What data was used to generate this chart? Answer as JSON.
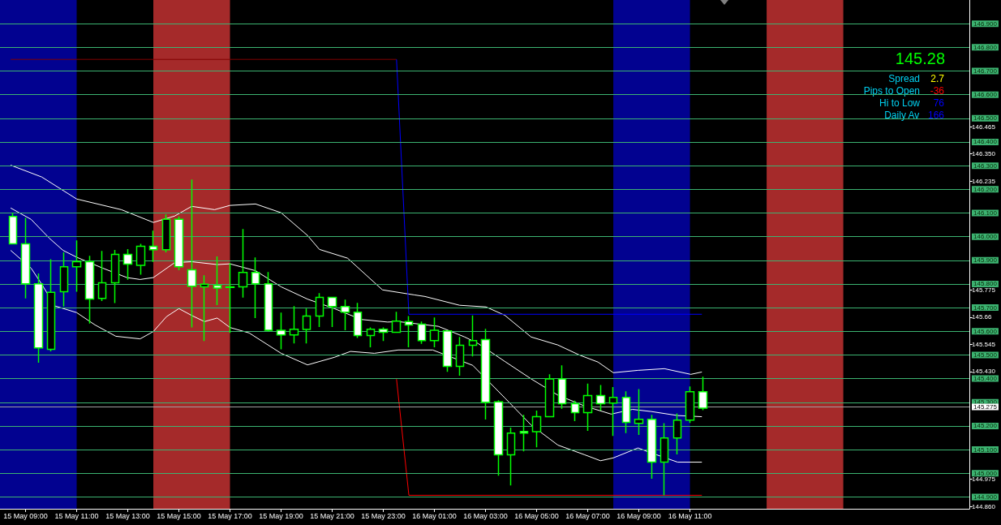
{
  "chart_data": {
    "type": "candlestick",
    "xlim": [
      "--05-15T08:00",
      "--05-16T21:56"
    ],
    "xticks": [
      {
        "value": "--05-15T09:00",
        "label": "15 May 09:00"
      },
      {
        "value": "--05-15T11:00",
        "label": "15 May 11:00"
      },
      {
        "value": "--05-15T13:00",
        "label": "15 May 13:00"
      },
      {
        "value": "--05-15T15:00",
        "label": "15 May 15:00"
      },
      {
        "value": "--05-15T17:00",
        "label": "15 May 17:00"
      },
      {
        "value": "--05-15T19:00",
        "label": "15 May 19:00"
      },
      {
        "value": "--05-15T21:00",
        "label": "15 May 21:00"
      },
      {
        "value": "--05-15T23:00",
        "label": "15 May 23:00"
      },
      {
        "value": "--05-16T01:00",
        "label": "16 May 01:00"
      },
      {
        "value": "--05-16T03:00",
        "label": "16 May 03:00"
      },
      {
        "value": "--05-16T05:00",
        "label": "16 May 05:00"
      },
      {
        "value": "--05-16T07:00",
        "label": "16 May 07:00"
      },
      {
        "value": "--05-16T09:00",
        "label": "16 May 09:00"
      },
      {
        "value": "--05-16T11:00",
        "label": "16 May 11:00"
      }
    ],
    "ylim": [
      144.85,
      147.0
    ],
    "yticks": [
      146.465,
      {
        "value": 146.35,
        "label": "146.350"
      },
      146.235,
      145.775,
      145.66,
      145.545,
      {
        "value": 145.43,
        "label": "145.430"
      },
      144.975,
      {
        "value": 144.86,
        "label": "144.860"
      }
    ],
    "grid": false,
    "marker": "none",
    "series": [
      {
        "type": "line",
        "color": "#ffffff",
        "x": [
          "--05-15T08:25",
          "--05-15T09:38",
          "--05-15T11:00",
          "--05-15T12:45",
          "--05-15T14:00",
          "--05-15T14:50",
          "--05-15T15:30",
          "--05-15T16:24",
          "--05-15T17:00",
          "--05-15T18:00",
          "--05-15T19:00",
          "--05-15T20:02",
          "--05-15T20:30",
          "--05-15T21:36",
          "--05-15T22:58",
          "--05-16T00:12",
          "--05-16T00:38",
          "--05-16T01:59",
          "--05-16T03:01",
          "--05-16T03:45",
          "--05-16T04:47",
          "--05-16T05:50",
          "--05-16T06:40",
          "--05-16T07:24",
          "--05-16T08:00",
          "--05-16T08:58",
          "--05-16T10:00",
          "--05-16T11:02",
          "--05-16T11:28"
        ],
        "values": [
          146.302,
          146.252,
          146.159,
          146.114,
          146.06,
          146.087,
          146.128,
          146.114,
          146.132,
          146.138,
          146.101,
          146.005,
          145.946,
          145.909,
          145.775,
          145.754,
          145.747,
          145.71,
          145.703,
          145.668,
          145.576,
          145.542,
          145.5,
          145.47,
          145.425,
          145.435,
          145.442,
          145.418,
          145.428
        ]
      },
      {
        "type": "line",
        "color": "#ffffff",
        "x": [
          "--05-15T08:25",
          "--05-15T09:13",
          "--05-15T09:56",
          "--05-15T10:28",
          "--05-15T11:00",
          "--05-15T12:01",
          "--05-15T12:58",
          "--05-15T13:29",
          "--05-15T14:00",
          "--05-15T14:50",
          "--05-15T15:30",
          "--05-15T16:30",
          "--05-15T17:00",
          "--05-15T18:00",
          "--05-15T19:00",
          "--05-15T20:02",
          "--05-15T21:05",
          "--05-15T22:08",
          "--05-15T23:10",
          "--05-15T23:35",
          "--05-16T01:09",
          "--05-16T02:11",
          "--05-16T02:43",
          "--05-16T03:45",
          "--05-16T04:47",
          "--05-16T05:50",
          "--05-16T06:53",
          "--05-16T07:55",
          "--05-16T08:45",
          "--05-16T09:29",
          "--05-16T10:31",
          "--05-16T11:02",
          "--05-16T11:28"
        ],
        "values": [
          146.121,
          146.073,
          145.993,
          145.942,
          145.913,
          145.867,
          145.827,
          145.819,
          145.827,
          145.89,
          145.894,
          145.882,
          145.885,
          145.856,
          145.788,
          145.736,
          145.696,
          145.65,
          145.639,
          145.641,
          145.621,
          145.576,
          145.548,
          145.473,
          145.399,
          145.33,
          145.284,
          145.25,
          145.27,
          145.261,
          145.244,
          null,
          145.239
        ]
      },
      {
        "type": "line",
        "color": "#ffffff",
        "x": [
          "--05-15T08:25",
          "--05-15T09:13",
          "--05-15T09:38",
          "--05-15T10:09",
          "--05-15T11:00",
          "--05-15T11:43",
          "--05-15T12:32",
          "--05-15T13:29",
          "--05-15T14:00",
          "--05-15T14:31",
          "--05-15T15:00",
          "--05-15T15:30",
          "--05-15T16:00",
          "--05-15T16:30",
          "--05-15T17:00",
          "--05-15T17:45",
          "--05-15T19:00",
          "--05-15T20:02",
          "--05-15T21:05",
          "--05-15T21:43",
          "--05-15T22:39",
          "--05-15T23:35",
          "--05-16T00:56",
          "--05-16T01:59",
          "--05-16T02:30",
          "--05-16T03:45",
          "--05-16T04:47",
          "--05-16T05:50",
          "--05-16T06:53",
          "--05-16T07:30",
          "--05-16T08:00",
          "--05-16T08:58",
          "--05-16T09:23",
          "--05-16T10:00",
          "--05-16T10:31",
          "--05-16T11:28"
        ],
        "values": [
          145.942,
          145.867,
          145.799,
          145.707,
          145.679,
          145.627,
          145.579,
          145.568,
          145.599,
          145.662,
          145.696,
          145.667,
          145.641,
          145.656,
          145.616,
          145.593,
          145.507,
          145.458,
          145.49,
          145.515,
          145.507,
          145.521,
          145.521,
          null,
          145.456,
          145.319,
          145.204,
          145.119,
          145.078,
          145.053,
          145.065,
          145.107,
          145.09,
          null,
          145.047,
          145.047
        ]
      },
      {
        "type": "line",
        "color": "#800000",
        "x": [
          "--05-15T08:25",
          "--05-15T23:31"
        ],
        "values": [
          146.749,
          146.749
        ]
      },
      {
        "type": "line",
        "color": "#0000ff",
        "x": [
          "--05-15T23:31",
          "--05-16T00:00",
          "--05-16T11:28"
        ],
        "values": [
          146.749,
          145.672,
          145.672
        ]
      },
      {
        "type": "line",
        "color": "#ff0000",
        "x": [
          "--05-15T23:31",
          "--05-16T00:00",
          "--05-16T11:28"
        ],
        "values": [
          145.398,
          144.907,
          144.907
        ]
      },
      {
        "color": "#00ff00",
        "x": [
          "--05-15T08:30",
          "--05-15T09:00",
          "--05-15T09:30",
          "--05-15T10:00",
          "--05-15T10:30",
          "--05-15T11:00",
          "--05-15T11:30",
          "--05-15T12:00",
          "--05-15T12:30",
          "--05-15T13:00",
          "--05-15T13:30",
          "--05-15T14:00",
          "--05-15T14:30",
          "--05-15T15:00",
          "--05-15T15:30",
          "--05-15T16:00",
          "--05-15T16:30",
          "--05-15T17:00",
          "--05-15T17:30",
          "--05-15T18:00",
          "--05-15T18:30",
          "--05-15T19:00",
          "--05-15T19:30",
          "--05-15T20:00",
          "--05-15T20:30",
          "--05-15T21:00",
          "--05-15T21:30",
          "--05-15T22:00",
          "--05-15T22:30",
          "--05-15T23:00",
          "--05-15T23:30",
          "--05-16T00:00",
          "--05-16T00:30",
          "--05-16T01:00",
          "--05-16T01:30",
          "--05-16T02:00",
          "--05-16T02:30",
          "--05-16T03:00",
          "--05-16T03:30",
          "--05-16T04:00",
          "--05-16T04:30",
          "--05-16T05:00",
          "--05-16T05:30",
          "--05-16T06:00",
          "--05-16T06:30",
          "--05-16T07:00",
          "--05-16T07:30",
          "--05-16T08:00",
          "--05-16T08:30",
          "--05-16T09:00",
          "--05-16T09:30",
          "--05-16T10:00",
          "--05-16T10:30",
          "--05-16T11:00",
          "--05-16T11:30"
        ],
        "ohlc": [
          [
            146.085,
            146.101,
            145.97,
            145.97
          ],
          [
            145.97,
            146.079,
            145.739,
            145.801
          ],
          [
            145.801,
            145.844,
            145.467,
            145.53
          ],
          [
            145.524,
            145.904,
            145.515,
            145.765
          ],
          [
            145.767,
            145.934,
            145.705,
            145.873
          ],
          [
            145.873,
            145.984,
            145.767,
            145.894
          ],
          [
            145.894,
            145.919,
            145.633,
            145.736
          ],
          [
            145.739,
            145.94,
            145.728,
            145.805
          ],
          [
            145.805,
            145.944,
            145.719,
            145.925
          ],
          [
            145.925,
            145.947,
            145.818,
            145.884
          ],
          [
            145.879,
            145.97,
            145.839,
            145.959
          ],
          [
            145.959,
            146.025,
            145.893,
            145.945
          ],
          [
            145.945,
            146.094,
            145.934,
            146.073
          ],
          [
            146.073,
            146.085,
            145.858,
            145.873
          ],
          [
            145.86,
            146.241,
            145.616,
            145.79
          ],
          [
            145.788,
            145.837,
            145.559,
            145.799
          ],
          [
            145.794,
            145.916,
            145.711,
            145.783
          ],
          [
            145.788,
            145.888,
            145.593,
            145.785
          ],
          [
            145.788,
            146.032,
            145.742,
            145.849
          ],
          [
            145.849,
            145.912,
            145.656,
            145.801
          ],
          [
            145.801,
            145.85,
            145.599,
            145.604
          ],
          [
            145.604,
            145.679,
            145.524,
            145.585
          ],
          [
            145.585,
            145.706,
            145.549,
            145.609
          ],
          [
            145.608,
            145.696,
            145.549,
            145.664
          ],
          [
            145.664,
            145.761,
            145.618,
            145.743
          ],
          [
            145.743,
            145.744,
            145.618,
            145.705
          ],
          [
            145.705,
            145.734,
            145.604,
            145.681
          ],
          [
            145.681,
            145.72,
            145.572,
            145.582
          ],
          [
            145.582,
            145.616,
            145.532,
            145.609
          ],
          [
            145.609,
            145.616,
            145.559,
            145.596
          ],
          [
            145.596,
            145.682,
            145.596,
            145.643
          ],
          [
            145.641,
            145.664,
            145.532,
            145.627
          ],
          [
            145.63,
            145.641,
            145.547,
            145.561
          ],
          [
            145.561,
            145.658,
            145.532,
            145.604
          ],
          [
            145.602,
            145.602,
            145.429,
            145.452
          ],
          [
            145.452,
            145.576,
            145.412,
            145.541
          ],
          [
            145.541,
            145.667,
            145.494,
            145.561
          ],
          [
            145.565,
            145.61,
            145.227,
            145.3
          ],
          [
            145.302,
            145.309,
            144.99,
            145.078
          ],
          [
            145.078,
            145.193,
            144.949,
            145.17
          ],
          [
            145.177,
            145.247,
            145.093,
            145.17
          ],
          [
            145.176,
            145.265,
            145.11,
            145.239
          ],
          [
            145.239,
            145.418,
            145.239,
            145.399
          ],
          [
            145.399,
            145.456,
            145.273,
            145.294
          ],
          [
            145.294,
            145.307,
            145.22,
            145.256
          ],
          [
            145.256,
            145.379,
            145.179,
            145.328
          ],
          [
            145.328,
            145.373,
            145.265,
            145.294
          ],
          [
            145.297,
            145.364,
            145.158,
            145.321
          ],
          [
            145.321,
            145.346,
            145.17,
            145.215
          ],
          [
            145.211,
            145.356,
            145.162,
            145.228
          ],
          [
            145.228,
            145.247,
            144.977,
            145.047
          ],
          [
            145.047,
            145.212,
            144.907,
            145.149
          ],
          [
            145.149,
            145.253,
            145.08,
            145.225
          ],
          [
            145.225,
            145.367,
            145.213,
            145.345
          ],
          [
            145.345,
            145.408,
            145.267,
            145.275
          ]
        ]
      }
    ],
    "bands": [
      {
        "axis": "x",
        "from": "--05-15T08:00",
        "to": "--05-15T11:00",
        "color": "#020290"
      },
      {
        "axis": "x",
        "from": "--05-15T14:00",
        "to": "--05-15T17:00",
        "color": "#a52a2a"
      },
      {
        "axis": "x",
        "from": "--05-16T08:00",
        "to": "--05-16T11:00",
        "color": "#020290"
      },
      {
        "axis": "x",
        "from": "--05-16T14:00",
        "to": "--05-16T17:00",
        "color": "#a52a2a"
      }
    ],
    "ref_lines": [
      {
        "axis": "y",
        "value": 146.9,
        "label": "146.900",
        "color": "#3cb371"
      },
      {
        "axis": "y",
        "value": 146.8,
        "label": "146.800",
        "color": "#3cb371"
      },
      {
        "axis": "y",
        "value": 146.7,
        "label": "146.700",
        "color": "#3cb371"
      },
      {
        "axis": "y",
        "value": 146.6,
        "label": "146.600",
        "color": "#3cb371"
      },
      {
        "axis": "y",
        "value": 146.5,
        "label": "146.500",
        "color": "#3cb371"
      },
      {
        "axis": "y",
        "value": 146.4,
        "label": "146.400",
        "color": "#3cb371"
      },
      {
        "axis": "y",
        "value": 146.3,
        "label": "146.300",
        "color": "#3cb371"
      },
      {
        "axis": "y",
        "value": 146.2,
        "label": "146.200",
        "color": "#3cb371"
      },
      {
        "axis": "y",
        "value": 146.1,
        "label": "146.100",
        "color": "#3cb371"
      },
      {
        "axis": "y",
        "value": 146.0,
        "label": "146.000",
        "color": "#3cb371"
      },
      {
        "axis": "y",
        "value": 145.9,
        "label": "145.900",
        "color": "#3cb371"
      },
      {
        "axis": "y",
        "value": 145.8,
        "label": "145.800",
        "color": "#3cb371"
      },
      {
        "axis": "y",
        "value": 145.7,
        "label": "145.700",
        "color": "#3cb371"
      },
      {
        "axis": "y",
        "value": 145.6,
        "label": "145.600",
        "color": "#3cb371"
      },
      {
        "axis": "y",
        "value": 145.5,
        "label": "145.500",
        "color": "#3cb371"
      },
      {
        "axis": "y",
        "value": 145.4,
        "label": "145.400",
        "color": "#3cb371"
      },
      {
        "axis": "y",
        "value": 145.3,
        "label": "145.300",
        "color": "#3cb371"
      },
      {
        "axis": "y",
        "value": 145.275,
        "label": "145.275",
        "color": "#a0a0a0"
      },
      {
        "axis": "y",
        "value": 145.2,
        "label": "145.200",
        "color": "#3cb371"
      },
      {
        "axis": "y",
        "value": 145.1,
        "label": "145.100",
        "color": "#3cb371"
      },
      {
        "axis": "y",
        "value": 145.0,
        "label": "145.000",
        "color": "#3cb371"
      },
      {
        "axis": "y",
        "value": 144.9,
        "label": "144.900",
        "color": "#3cb371"
      }
    ],
    "annotations": [
      "145.28",
      "Spread",
      "2.7",
      "Pips to Open",
      "-36",
      "Hi to Low",
      "76",
      "Daily Av",
      "166"
    ]
  }
}
